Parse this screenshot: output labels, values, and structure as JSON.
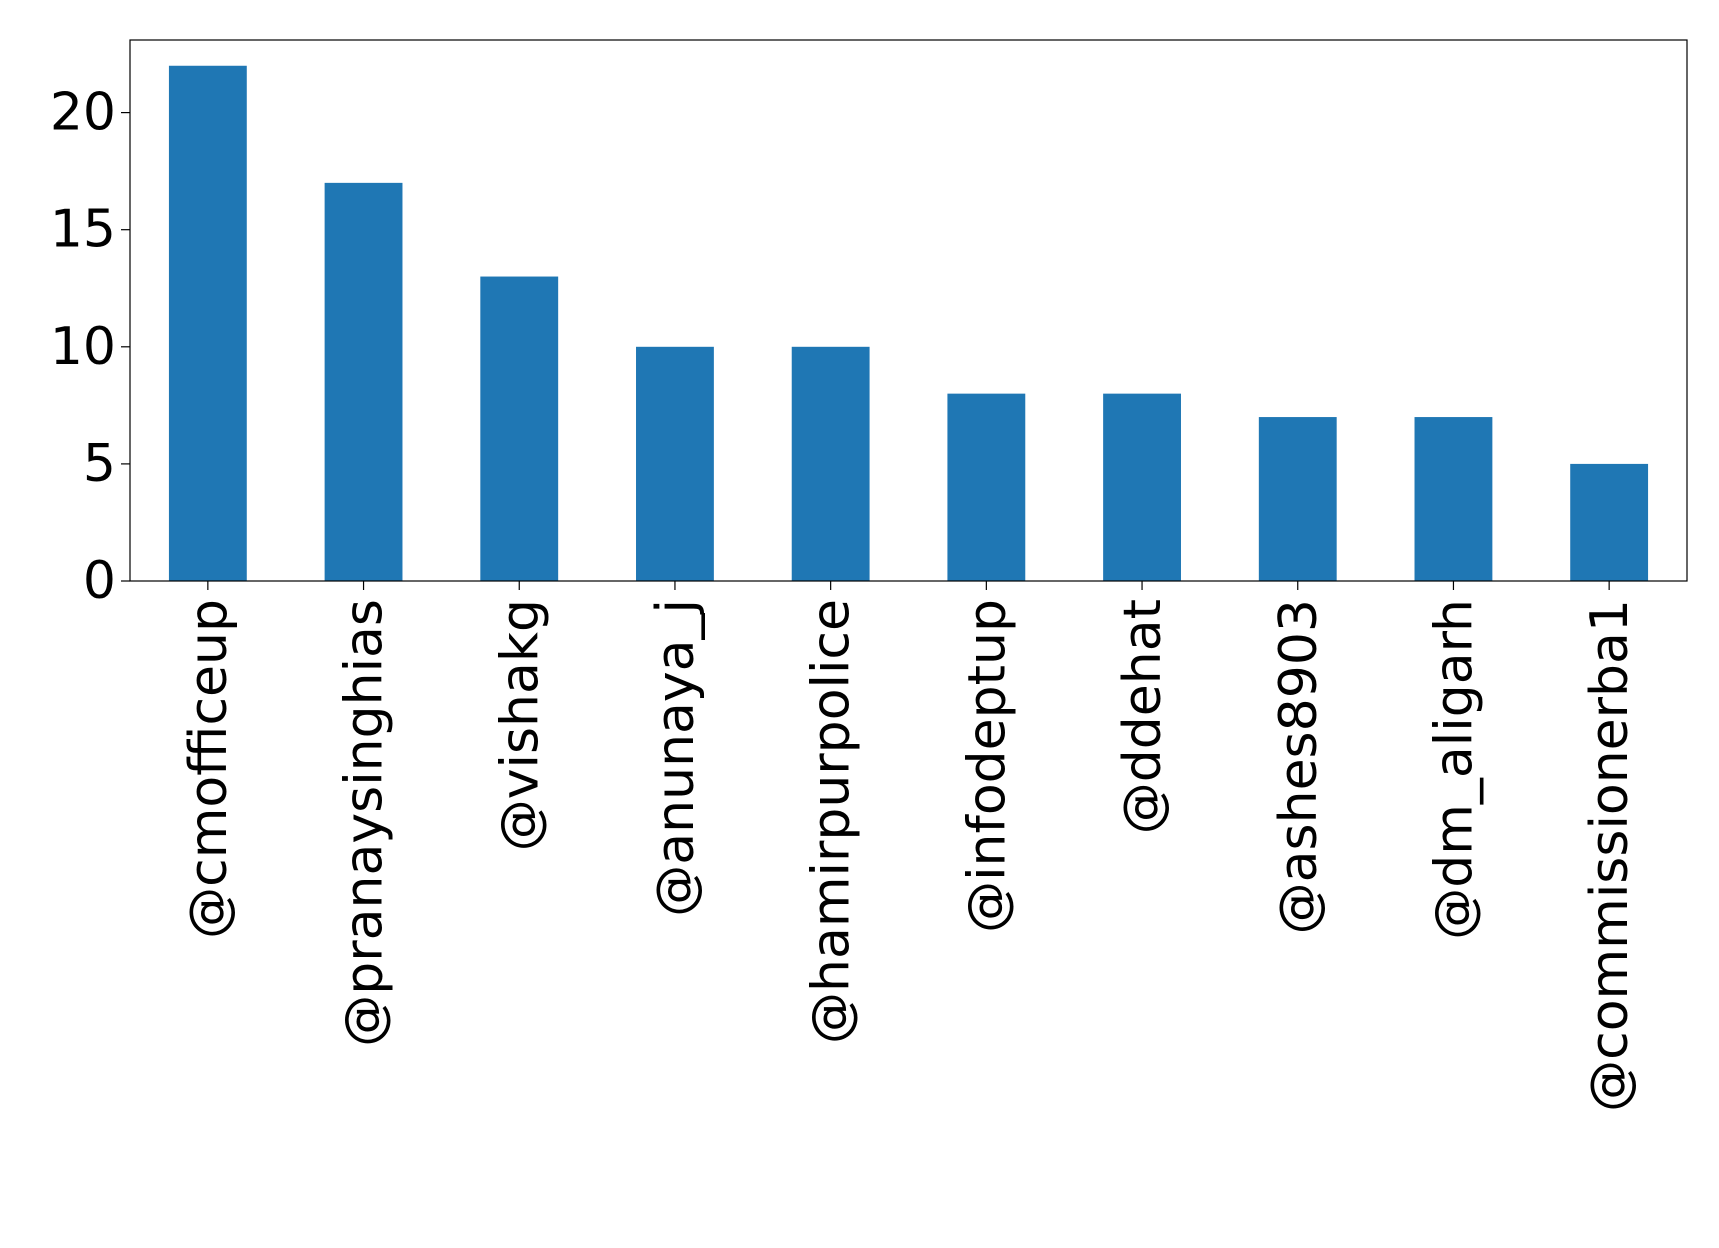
{
  "chart_data": {
    "type": "bar",
    "title": "",
    "xlabel": "",
    "ylabel": "",
    "categories": [
      "@cmofficeup",
      "@pranaysinghias",
      "@vishakg",
      "@anunaya_j",
      "@hamirpurpolice",
      "@infodeptup",
      "@ddehat",
      "@ashes8903",
      "@dm_aligarh",
      "@commissionerba1"
    ],
    "values": [
      22,
      17,
      13,
      10,
      10,
      8,
      8,
      7,
      7,
      5
    ],
    "ylim": [
      0,
      23.1
    ],
    "yticks": [
      0,
      5,
      10,
      15,
      20
    ],
    "grid": false,
    "legend": "none",
    "colors": {
      "bar": "#1f77b4",
      "axis": "#000000",
      "background": "#ffffff"
    }
  }
}
